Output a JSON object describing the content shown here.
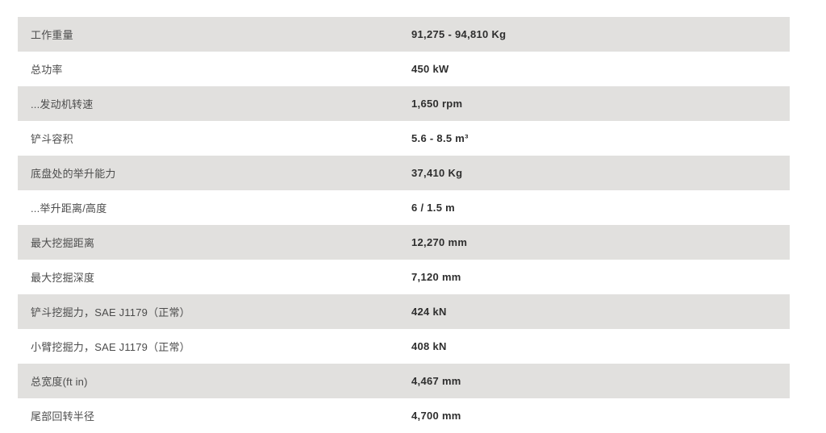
{
  "table": {
    "rows": [
      {
        "label": "工作重量",
        "value": "91,275 - 94,810 Kg"
      },
      {
        "label": "总功率",
        "value": "450 kW"
      },
      {
        "label": "...发动机转速",
        "value": "1,650 rpm"
      },
      {
        "label": "铲斗容积",
        "value": "5.6 - 8.5 m³"
      },
      {
        "label": "底盘处的举升能力",
        "value": "37,410 Kg"
      },
      {
        "label": "...举升距离/高度",
        "value": "6 / 1.5 m"
      },
      {
        "label": "最大挖掘距离",
        "value": "12,270 mm"
      },
      {
        "label": "最大挖掘深度",
        "value": "7,120 mm"
      },
      {
        "label": "铲斗挖掘力，SAE J1179（正常）",
        "value": "424 kN"
      },
      {
        "label": "小臂挖掘力，SAE J1179（正常）",
        "value": "408 kN"
      },
      {
        "label": "总宽度(ft in)",
        "value": "4,467 mm"
      },
      {
        "label": "尾部回转半径",
        "value": "4,700 mm"
      }
    ],
    "colors": {
      "row_alt_bg": "#e1e0de",
      "row_bg": "#ffffff",
      "label_text": "#4c4c4c",
      "value_text": "#2e2e2e"
    }
  }
}
